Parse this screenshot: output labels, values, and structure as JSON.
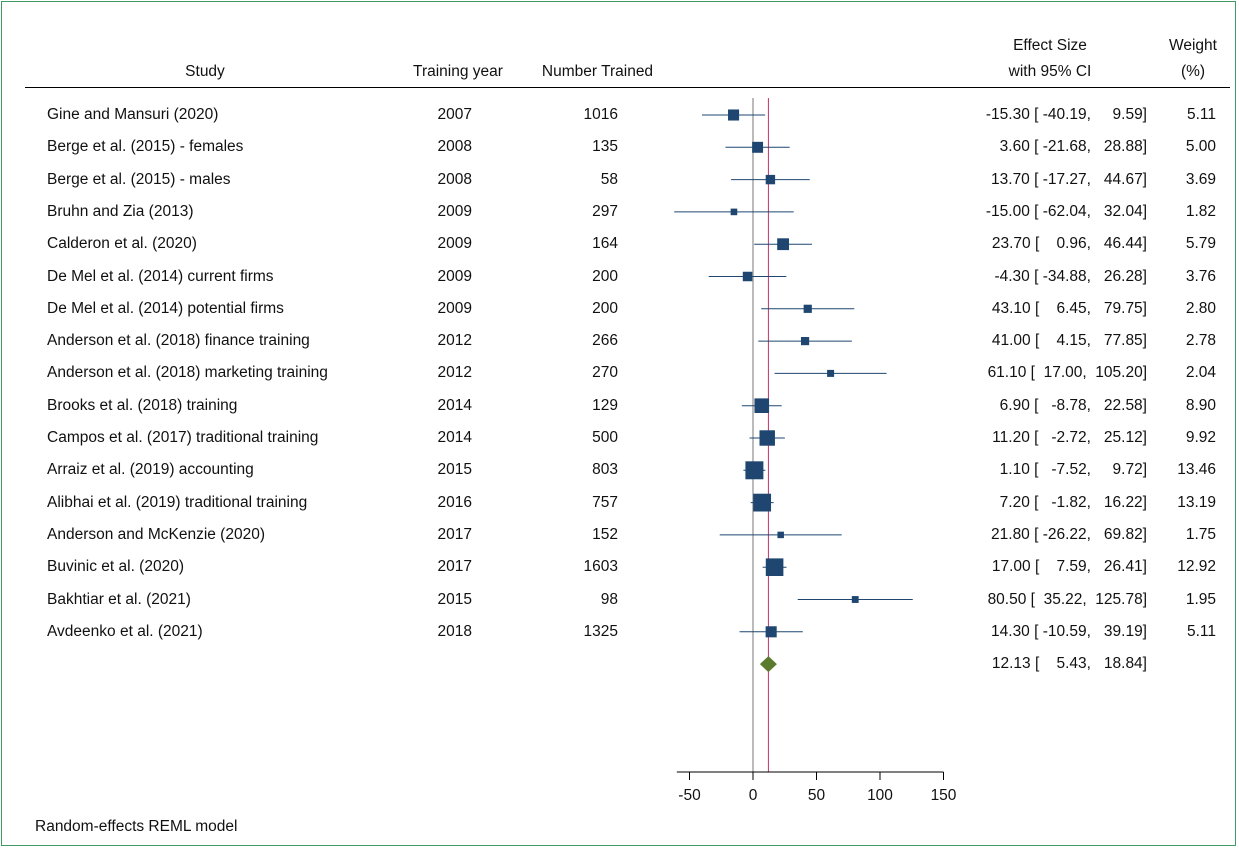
{
  "headers": {
    "study": "Study",
    "year": "Training year",
    "number": "Number Trained",
    "effect_line1": "Effect Size",
    "effect_line2": "with 95% CI",
    "weight_line1": "Weight",
    "weight_line2": "(%)"
  },
  "note": "Random-effects REML model",
  "colors": {
    "frame": "#3f9a64",
    "marker": "#1e4670",
    "pooled": "#5a7b2e",
    "pooled_line": "#c0306a",
    "zero_line": "#777777"
  },
  "chart_data": {
    "type": "forest",
    "xlim": [
      -60,
      150
    ],
    "xticks": [
      -50,
      0,
      50,
      100,
      150
    ],
    "zero_line": 0,
    "studies": [
      {
        "study": "Gine and Mansuri (2020)",
        "year": "2007",
        "n": "1016",
        "es": -15.3,
        "lo": -40.19,
        "hi": 9.59,
        "es_text": "-15.30 [ -40.19,     9.59]",
        "weight": "5.11"
      },
      {
        "study": "Berge et al. (2015) - females",
        "year": "2008",
        "n": "135",
        "es": 3.6,
        "lo": -21.68,
        "hi": 28.88,
        "es_text": "3.60 [ -21.68,   28.88]",
        "weight": "5.00"
      },
      {
        "study": "Berge et al. (2015) - males",
        "year": "2008",
        "n": "58",
        "es": 13.7,
        "lo": -17.27,
        "hi": 44.67,
        "es_text": "13.70 [ -17.27,   44.67]",
        "weight": "3.69"
      },
      {
        "study": "Bruhn and Zia (2013)",
        "year": "2009",
        "n": "297",
        "es": -15.0,
        "lo": -62.04,
        "hi": 32.04,
        "es_text": "-15.00 [ -62.04,   32.04]",
        "weight": "1.82"
      },
      {
        "study": "Calderon et al. (2020)",
        "year": "2009",
        "n": "164",
        "es": 23.7,
        "lo": 0.96,
        "hi": 46.44,
        "es_text": "23.70 [    0.96,   46.44]",
        "weight": "5.79"
      },
      {
        "study": "De Mel et al. (2014) current firms",
        "year": "2009",
        "n": "200",
        "es": -4.3,
        "lo": -34.88,
        "hi": 26.28,
        "es_text": "-4.30 [ -34.88,   26.28]",
        "weight": "3.76"
      },
      {
        "study": "De Mel et al. (2014) potential firms",
        "year": "2009",
        "n": "200",
        "es": 43.1,
        "lo": 6.45,
        "hi": 79.75,
        "es_text": "43.10 [    6.45,   79.75]",
        "weight": "2.80"
      },
      {
        "study": "Anderson et al. (2018) finance training",
        "year": "2012",
        "n": "266",
        "es": 41.0,
        "lo": 4.15,
        "hi": 77.85,
        "es_text": "41.00 [    4.15,   77.85]",
        "weight": "2.78"
      },
      {
        "study": "Anderson et al. (2018) marketing training",
        "year": "2012",
        "n": "270",
        "es": 61.1,
        "lo": 17.0,
        "hi": 105.2,
        "es_text": "61.10 [  17.00,  105.20]",
        "weight": "2.04"
      },
      {
        "study": "Brooks et al. (2018) training",
        "year": "2014",
        "n": "129",
        "es": 6.9,
        "lo": -8.78,
        "hi": 22.58,
        "es_text": "6.90 [   -8.78,   22.58]",
        "weight": "8.90"
      },
      {
        "study": "Campos et al. (2017) traditional training",
        "year": "2014",
        "n": "500",
        "es": 11.2,
        "lo": -2.72,
        "hi": 25.12,
        "es_text": "11.20 [   -2.72,   25.12]",
        "weight": "9.92"
      },
      {
        "study": "Arraiz et al. (2019) accounting",
        "year": "2015",
        "n": "803",
        "es": 1.1,
        "lo": -7.52,
        "hi": 9.72,
        "es_text": "1.10 [   -7.52,     9.72]",
        "weight": "13.46"
      },
      {
        "study": "Alibhai et al. (2019) traditional training",
        "year": "2016",
        "n": "757",
        "es": 7.2,
        "lo": -1.82,
        "hi": 16.22,
        "es_text": "7.20 [   -1.82,   16.22]",
        "weight": "13.19"
      },
      {
        "study": "Anderson and McKenzie (2020)",
        "year": "2017",
        "n": "152",
        "es": 21.8,
        "lo": -26.22,
        "hi": 69.82,
        "es_text": "21.80 [ -26.22,   69.82]",
        "weight": "1.75"
      },
      {
        "study": "Buvinic et al. (2020)",
        "year": "2017",
        "n": "1603",
        "es": 17.0,
        "lo": 7.59,
        "hi": 26.41,
        "es_text": "17.00 [    7.59,   26.41]",
        "weight": "12.92"
      },
      {
        "study": "Bakhtiar et al. (2021)",
        "year": "2015",
        "n": "98",
        "es": 80.5,
        "lo": 35.22,
        "hi": 125.78,
        "es_text": "80.50 [  35.22,  125.78]",
        "weight": "1.95"
      },
      {
        "study": "Avdeenko et al. (2021)",
        "year": "2018",
        "n": "1325",
        "es": 14.3,
        "lo": -10.59,
        "hi": 39.19,
        "es_text": "14.30 [ -10.59,   39.19]",
        "weight": "5.11"
      }
    ],
    "pooled": {
      "es": 12.13,
      "lo": 5.43,
      "hi": 18.84,
      "es_text": "12.13 [    5.43,   18.84]"
    }
  }
}
